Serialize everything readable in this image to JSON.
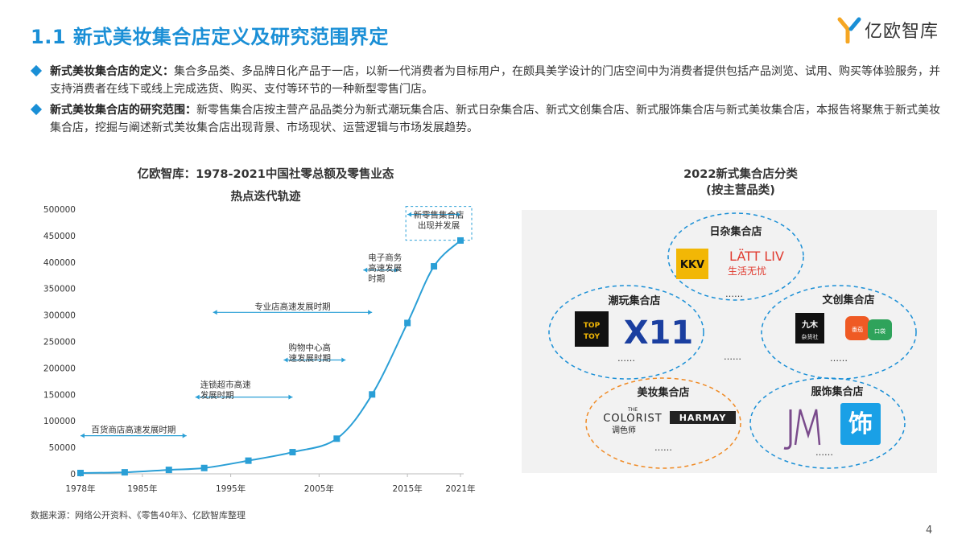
{
  "slide": {
    "title": "1.1 新式美妆集合店定义及研究范围界定",
    "logo_text": "亿欧智库",
    "page_number": "4",
    "source": "数据来源：网络公开资料、《零售40年》、亿欧智库整理"
  },
  "bullets": [
    {
      "label": "新式美妆集合店的定义：",
      "text": "集合多品类、多品牌日化产品于一店，以新一代消费者为目标用户，在颇具美学设计的门店空间中为消费者提供包括产品浏览、试用、购买等体验服务，并支持消费者在线下或线上完成选货、购买、支付等环节的一种新型零售门店。"
    },
    {
      "label": "新式美妆集合店的研究范围：",
      "text": "新零售集合店按主营产品品类分为新式潮玩集合店、新式日杂集合店、新式文创集合店、新式服饰集合店与新式美妆集合店，本报告将聚焦于新式美妆集合店，挖掘与阐述新式美妆集合店出现背景、市场现状、运营逻辑与市场发展趋势。"
    }
  ],
  "chart_data": {
    "type": "line",
    "title_line1": "亿欧智库：1978-2021中国社零总额及零售业态",
    "title_line2": "热点迭代轨迹",
    "x": [
      1978,
      1983,
      1988,
      1992,
      1997,
      2002,
      2007,
      2011,
      2015,
      2018,
      2021
    ],
    "values": [
      1559,
      2849,
      7440,
      10994,
      24860,
      40911,
      66400,
      150000,
      285000,
      392000,
      440800
    ],
    "x_ticks": [
      "1978年",
      "1985年",
      "1995年",
      "2005年",
      "2015年",
      "2021年"
    ],
    "x_tick_years": [
      1978,
      1985,
      1995,
      2005,
      2015,
      2021
    ],
    "ylim": [
      0,
      500000
    ],
    "y_ticks": [
      "0",
      "50000",
      "100000",
      "150000",
      "200000",
      "250000",
      "300000",
      "350000",
      "400000",
      "450000",
      "500000"
    ],
    "color": "#2a9fd6",
    "annotations": [
      {
        "lines": [
          "百货商店高速发展时期"
        ],
        "span": [
          1978,
          1990
        ],
        "y": 72000
      },
      {
        "lines": [
          "连锁超市高速",
          "发展时期"
        ],
        "span": [
          1991,
          2002
        ],
        "y": 145000
      },
      {
        "lines": [
          "购物中心高",
          "速发展时期"
        ],
        "span": [
          2001,
          2008
        ],
        "y": 215000
      },
      {
        "lines": [
          "专业店高速发展时期"
        ],
        "span": [
          1993,
          2011
        ],
        "y": 305000
      },
      {
        "lines": [
          "电子商务",
          "高速发展",
          "时期"
        ],
        "span": [
          2010,
          2014
        ],
        "y": 385000
      },
      {
        "lines": [
          "新零售集合店",
          "出现并发展"
        ],
        "span": [
          2015,
          2021
        ],
        "y": 490000,
        "boxed": true
      }
    ]
  },
  "categories": {
    "title_line1": "2022新式集合店分类",
    "title_line2": "(按主营品类)",
    "ellipsis": "……",
    "groups": [
      {
        "name": "日杂集合店",
        "brands": [
          "KKV",
          "LÄTT LIV",
          "生活无忧"
        ],
        "ellipsis": "……"
      },
      {
        "name": "潮玩集合店",
        "brands": [
          "TOP",
          "TOY",
          "X11"
        ],
        "ellipsis": "……"
      },
      {
        "name": "文创集合店",
        "brands": [
          "九木",
          "杂货社",
          "番茄",
          "口袋"
        ],
        "ellipsis": "……"
      },
      {
        "name": "美妆集合店",
        "brands": [
          "THE",
          "COLORIST",
          "调色师",
          "HARMAY"
        ],
        "ellipsis": "……"
      },
      {
        "name": "服饰集合店",
        "brands": [
          "饰"
        ],
        "ellipsis": "……"
      }
    ]
  }
}
